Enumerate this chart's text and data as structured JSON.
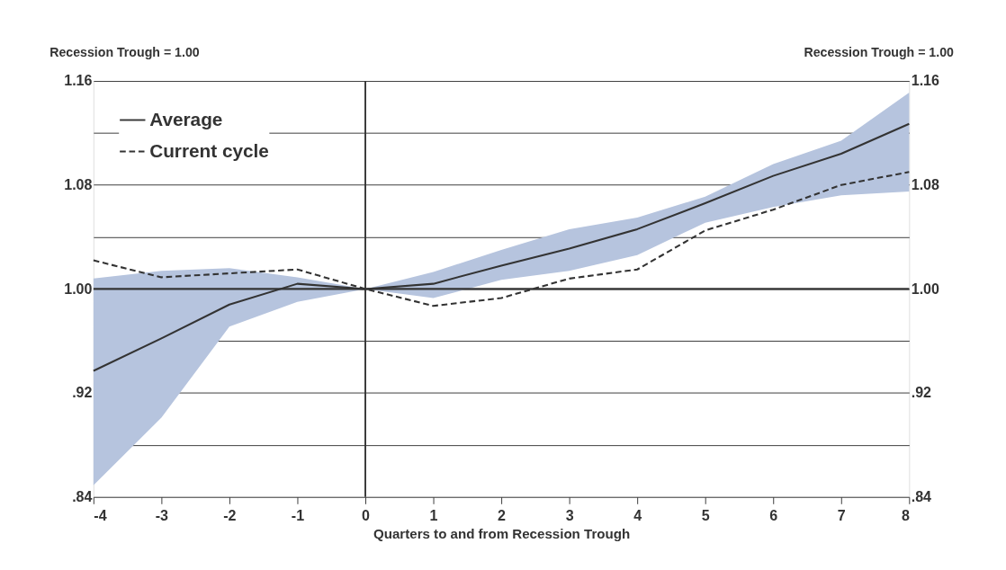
{
  "chart_data": {
    "type": "line",
    "xlabel": "Quarters to and from Recession Trough",
    "ylabel": "Recession Trough = 1.00",
    "y2label": "Recession Trough = 1.00",
    "x": [
      -4,
      -3,
      -2,
      -1,
      0,
      1,
      2,
      3,
      4,
      5,
      6,
      7,
      8
    ],
    "series": [
      {
        "name": "Average",
        "color": "#333333",
        "line_style": "solid",
        "values": [
          0.937,
          0.962,
          0.988,
          1.004,
          1.0,
          1.004,
          1.018,
          1.031,
          1.046,
          1.066,
          1.087,
          1.104,
          1.127
        ],
        "lower": [
          0.849,
          0.901,
          0.971,
          0.99,
          1.0,
          0.993,
          1.007,
          1.014,
          1.026,
          1.051,
          1.063,
          1.072,
          1.075
        ],
        "upper": [
          1.008,
          1.014,
          1.016,
          1.009,
          1.0,
          1.013,
          1.03,
          1.046,
          1.055,
          1.071,
          1.096,
          1.114,
          1.151
        ]
      },
      {
        "name": "Current cycle",
        "color": "#333333",
        "line_style": "dashed",
        "values": [
          1.022,
          1.009,
          1.012,
          1.015,
          1.0,
          0.987,
          0.993,
          1.008,
          1.015,
          1.045,
          1.061,
          1.08,
          1.09
        ]
      }
    ],
    "xlim": [
      -4,
      8
    ],
    "xticks": [
      -4,
      -3,
      -2,
      -1,
      0,
      1,
      2,
      3,
      4,
      5,
      6,
      7,
      8
    ],
    "ylim": [
      0.84,
      1.16
    ],
    "yticks": [
      {
        "value": 0.84,
        "label": ".84"
      },
      {
        "value": 0.88,
        "label": null
      },
      {
        "value": 0.92,
        "label": ".92"
      },
      {
        "value": 0.96,
        "label": null
      },
      {
        "value": 1.0,
        "label": "1.00"
      },
      {
        "value": 1.04,
        "label": null
      },
      {
        "value": 1.08,
        "label": "1.08"
      },
      {
        "value": 1.12,
        "label": null
      },
      {
        "value": 1.16,
        "label": "1.16"
      }
    ],
    "y2lim": [
      0.84,
      1.16
    ],
    "y2ticks": [
      {
        "value": 0.84,
        "label": ".84"
      },
      {
        "value": 0.88,
        "label": null
      },
      {
        "value": 0.92,
        "label": ".92"
      },
      {
        "value": 0.96,
        "label": null
      },
      {
        "value": 1.0,
        "label": "1.00"
      },
      {
        "value": 1.04,
        "label": null
      },
      {
        "value": 1.08,
        "label": "1.08"
      },
      {
        "value": 1.12,
        "label": null
      },
      {
        "value": 1.16,
        "label": "1.16"
      }
    ],
    "ref_lines": [
      {
        "axis": "x",
        "value": 0,
        "color": "#333333"
      },
      {
        "axis": "y",
        "value": 1.0,
        "color": "#333333"
      }
    ],
    "grid": "y",
    "legend": "top left",
    "marker": "none"
  }
}
